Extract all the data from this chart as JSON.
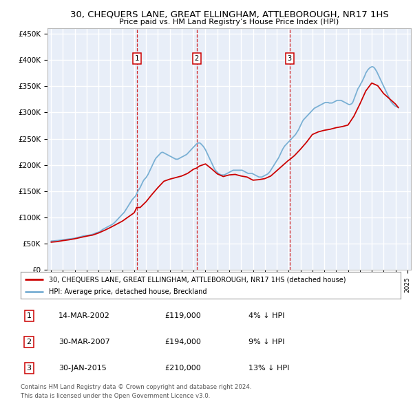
{
  "title": "30, CHEQUERS LANE, GREAT ELLINGHAM, ATTLEBOROUGH, NR17 1HS",
  "subtitle": "Price paid vs. HM Land Registry’s House Price Index (HPI)",
  "property_color": "#cc0000",
  "hpi_color": "#7ab0d4",
  "background_color": "#e8eef8",
  "grid_color": "#ffffff",
  "ylim": [
    0,
    460000
  ],
  "yticks": [
    0,
    50000,
    100000,
    150000,
    200000,
    250000,
    300000,
    350000,
    400000,
    450000
  ],
  "ytick_labels": [
    "£0",
    "£50K",
    "£100K",
    "£150K",
    "£200K",
    "£250K",
    "£300K",
    "£350K",
    "£400K",
    "£450K"
  ],
  "transactions": [
    {
      "label": "1",
      "date": "14-MAR-2002",
      "price": "119,000",
      "hpi_diff": "4% ↓ HPI",
      "x": 2002.21
    },
    {
      "label": "2",
      "date": "30-MAR-2007",
      "price": "194,000",
      "hpi_diff": "9% ↓ HPI",
      "x": 2007.25
    },
    {
      "label": "3",
      "date": "30-JAN-2015",
      "price": "210,000",
      "hpi_diff": "13% ↓ HPI",
      "x": 2015.08
    }
  ],
  "legend_property": "30, CHEQUERS LANE, GREAT ELLINGHAM, ATTLEBOROUGH, NR17 1HS (detached house)",
  "legend_hpi": "HPI: Average price, detached house, Breckland",
  "footnote1": "Contains HM Land Registry data © Crown copyright and database right 2024.",
  "footnote2": "This data is licensed under the Open Government Licence v3.0.",
  "hpi_data_x": [
    1995.0,
    1995.083,
    1995.167,
    1995.25,
    1995.333,
    1995.417,
    1995.5,
    1995.583,
    1995.667,
    1995.75,
    1995.833,
    1995.917,
    1996.0,
    1996.083,
    1996.167,
    1996.25,
    1996.333,
    1996.417,
    1996.5,
    1996.583,
    1996.667,
    1996.75,
    1996.833,
    1996.917,
    1997.0,
    1997.083,
    1997.167,
    1997.25,
    1997.333,
    1997.417,
    1997.5,
    1997.583,
    1997.667,
    1997.75,
    1997.833,
    1997.917,
    1998.0,
    1998.083,
    1998.167,
    1998.25,
    1998.333,
    1998.417,
    1998.5,
    1998.583,
    1998.667,
    1998.75,
    1998.833,
    1998.917,
    1999.0,
    1999.083,
    1999.167,
    1999.25,
    1999.333,
    1999.417,
    1999.5,
    1999.583,
    1999.667,
    1999.75,
    1999.833,
    1999.917,
    2000.0,
    2000.083,
    2000.167,
    2000.25,
    2000.333,
    2000.417,
    2000.5,
    2000.583,
    2000.667,
    2000.75,
    2000.833,
    2000.917,
    2001.0,
    2001.083,
    2001.167,
    2001.25,
    2001.333,
    2001.417,
    2001.5,
    2001.583,
    2001.667,
    2001.75,
    2001.833,
    2001.917,
    2002.0,
    2002.083,
    2002.167,
    2002.25,
    2002.333,
    2002.417,
    2002.5,
    2002.583,
    2002.667,
    2002.75,
    2002.833,
    2002.917,
    2003.0,
    2003.083,
    2003.167,
    2003.25,
    2003.333,
    2003.417,
    2003.5,
    2003.583,
    2003.667,
    2003.75,
    2003.833,
    2003.917,
    2004.0,
    2004.083,
    2004.167,
    2004.25,
    2004.333,
    2004.417,
    2004.5,
    2004.583,
    2004.667,
    2004.75,
    2004.833,
    2004.917,
    2005.0,
    2005.083,
    2005.167,
    2005.25,
    2005.333,
    2005.417,
    2005.5,
    2005.583,
    2005.667,
    2005.75,
    2005.833,
    2005.917,
    2006.0,
    2006.083,
    2006.167,
    2006.25,
    2006.333,
    2006.417,
    2006.5,
    2006.583,
    2006.667,
    2006.75,
    2006.833,
    2006.917,
    2007.0,
    2007.083,
    2007.167,
    2007.25,
    2007.333,
    2007.417,
    2007.5,
    2007.583,
    2007.667,
    2007.75,
    2007.833,
    2007.917,
    2008.0,
    2008.083,
    2008.167,
    2008.25,
    2008.333,
    2008.417,
    2008.5,
    2008.583,
    2008.667,
    2008.75,
    2008.833,
    2008.917,
    2009.0,
    2009.083,
    2009.167,
    2009.25,
    2009.333,
    2009.417,
    2009.5,
    2009.583,
    2009.667,
    2009.75,
    2009.833,
    2009.917,
    2010.0,
    2010.083,
    2010.167,
    2010.25,
    2010.333,
    2010.417,
    2010.5,
    2010.583,
    2010.667,
    2010.75,
    2010.833,
    2010.917,
    2011.0,
    2011.083,
    2011.167,
    2011.25,
    2011.333,
    2011.417,
    2011.5,
    2011.583,
    2011.667,
    2011.75,
    2011.833,
    2011.917,
    2012.0,
    2012.083,
    2012.167,
    2012.25,
    2012.333,
    2012.417,
    2012.5,
    2012.583,
    2012.667,
    2012.75,
    2012.833,
    2012.917,
    2013.0,
    2013.083,
    2013.167,
    2013.25,
    2013.333,
    2013.417,
    2013.5,
    2013.583,
    2013.667,
    2013.75,
    2013.833,
    2013.917,
    2014.0,
    2014.083,
    2014.167,
    2014.25,
    2014.333,
    2014.417,
    2014.5,
    2014.583,
    2014.667,
    2014.75,
    2014.833,
    2014.917,
    2015.0,
    2015.083,
    2015.167,
    2015.25,
    2015.333,
    2015.417,
    2015.5,
    2015.583,
    2015.667,
    2015.75,
    2015.833,
    2015.917,
    2016.0,
    2016.083,
    2016.167,
    2016.25,
    2016.333,
    2016.417,
    2016.5,
    2016.583,
    2016.667,
    2016.75,
    2016.833,
    2016.917,
    2017.0,
    2017.083,
    2017.167,
    2017.25,
    2017.333,
    2017.417,
    2017.5,
    2017.583,
    2017.667,
    2017.75,
    2017.833,
    2017.917,
    2018.0,
    2018.083,
    2018.167,
    2018.25,
    2018.333,
    2018.417,
    2018.5,
    2018.583,
    2018.667,
    2018.75,
    2018.833,
    2018.917,
    2019.0,
    2019.083,
    2019.167,
    2019.25,
    2019.333,
    2019.417,
    2019.5,
    2019.583,
    2019.667,
    2019.75,
    2019.833,
    2019.917,
    2020.0,
    2020.083,
    2020.167,
    2020.25,
    2020.333,
    2020.417,
    2020.5,
    2020.583,
    2020.667,
    2020.75,
    2020.833,
    2020.917,
    2021.0,
    2021.083,
    2021.167,
    2021.25,
    2021.333,
    2021.417,
    2021.5,
    2021.583,
    2021.667,
    2021.75,
    2021.833,
    2021.917,
    2022.0,
    2022.083,
    2022.167,
    2022.25,
    2022.333,
    2022.417,
    2022.5,
    2022.583,
    2022.667,
    2022.75,
    2022.833,
    2022.917,
    2023.0,
    2023.083,
    2023.167,
    2023.25,
    2023.333,
    2023.417,
    2023.5,
    2023.583,
    2023.667,
    2023.75,
    2023.833,
    2023.917,
    2024.0,
    2024.083,
    2024.167,
    2024.25
  ],
  "hpi_data_y": [
    55000,
    55200,
    55400,
    55600,
    55800,
    55900,
    56000,
    56200,
    56500,
    56800,
    57000,
    57200,
    57500,
    57700,
    58000,
    58300,
    58600,
    58800,
    59000,
    59300,
    59600,
    59800,
    60000,
    60300,
    60600,
    61000,
    61500,
    62000,
    62500,
    63000,
    63500,
    64000,
    64500,
    65000,
    65200,
    65400,
    65600,
    65800,
    66200,
    66600,
    67000,
    67500,
    68000,
    68700,
    69400,
    70200,
    71000,
    71500,
    72000,
    73000,
    74000,
    75500,
    77000,
    78000,
    79000,
    80000,
    81000,
    82000,
    83000,
    84000,
    85000,
    86000,
    87000,
    88500,
    90000,
    92000,
    94000,
    96000,
    98000,
    100000,
    102000,
    104000,
    106000,
    108000,
    110000,
    113000,
    116000,
    119000,
    122000,
    125000,
    128000,
    131000,
    134000,
    136000,
    138000,
    140000,
    143000,
    147000,
    151000,
    154000,
    157000,
    161000,
    165000,
    169000,
    172000,
    174000,
    176000,
    179000,
    182000,
    186000,
    190000,
    194000,
    198000,
    202000,
    206000,
    210000,
    213000,
    215000,
    217000,
    219000,
    221000,
    223000,
    224000,
    224000,
    223000,
    222000,
    221000,
    220000,
    219000,
    218000,
    217000,
    216000,
    215000,
    214000,
    213000,
    212000,
    211000,
    211000,
    211000,
    212000,
    213000,
    214000,
    215000,
    216000,
    217000,
    218000,
    219000,
    220000,
    222000,
    224000,
    226000,
    228000,
    230000,
    232000,
    234000,
    236000,
    238000,
    240000,
    241000,
    242000,
    242000,
    241000,
    239000,
    237000,
    235000,
    232000,
    229000,
    225000,
    221000,
    217000,
    213000,
    209000,
    205000,
    201000,
    197000,
    193000,
    190000,
    188000,
    186000,
    184000,
    183000,
    182000,
    181000,
    181000,
    181000,
    181000,
    182000,
    183000,
    184000,
    185000,
    186000,
    187000,
    188000,
    189000,
    190000,
    190000,
    190000,
    190000,
    190000,
    190000,
    190000,
    190000,
    190000,
    190000,
    189000,
    188000,
    187000,
    186000,
    185000,
    184000,
    184000,
    184000,
    184000,
    184000,
    183000,
    182000,
    181000,
    180000,
    179000,
    178000,
    177000,
    177000,
    177000,
    177000,
    178000,
    179000,
    180000,
    181000,
    182000,
    183000,
    185000,
    187000,
    190000,
    193000,
    196000,
    199000,
    202000,
    205000,
    208000,
    211000,
    214000,
    218000,
    222000,
    226000,
    230000,
    233000,
    236000,
    238000,
    240000,
    242000,
    244000,
    246000,
    248000,
    250000,
    252000,
    254000,
    256000,
    258000,
    261000,
    264000,
    267000,
    271000,
    275000,
    279000,
    283000,
    286000,
    288000,
    290000,
    292000,
    294000,
    296000,
    298000,
    300000,
    302000,
    304000,
    306000,
    308000,
    309000,
    310000,
    311000,
    312000,
    313000,
    314000,
    315000,
    316000,
    317000,
    318000,
    319000,
    319000,
    319000,
    319000,
    318000,
    318000,
    318000,
    318000,
    319000,
    320000,
    321000,
    322000,
    323000,
    323000,
    323000,
    323000,
    323000,
    322000,
    321000,
    320000,
    319000,
    318000,
    317000,
    316000,
    315000,
    315000,
    316000,
    317000,
    320000,
    325000,
    330000,
    335000,
    340000,
    345000,
    348000,
    351000,
    355000,
    358000,
    362000,
    366000,
    370000,
    375000,
    378000,
    381000,
    383000,
    385000,
    386000,
    387000,
    387000,
    386000,
    384000,
    381000,
    378000,
    374000,
    370000,
    366000,
    362000,
    358000,
    354000,
    350000,
    346000,
    342000,
    338000,
    334000,
    330000,
    326000,
    322000,
    319000,
    317000,
    315000,
    313000,
    312000,
    311000,
    310000,
    309000
  ],
  "prop_data_x": [
    1995.0,
    1995.5,
    1996.0,
    1996.5,
    1997.0,
    1997.5,
    1998.0,
    1998.5,
    1999.0,
    1999.5,
    2000.0,
    2000.5,
    2001.0,
    2001.5,
    2002.0,
    2002.21,
    2002.5,
    2003.0,
    2003.5,
    2004.0,
    2004.5,
    2005.0,
    2005.5,
    2006.0,
    2006.5,
    2007.0,
    2007.25,
    2007.5,
    2008.0,
    2008.5,
    2009.0,
    2009.5,
    2010.0,
    2010.5,
    2011.0,
    2011.5,
    2012.0,
    2012.5,
    2013.0,
    2013.5,
    2014.0,
    2014.5,
    2015.0,
    2015.08,
    2015.5,
    2016.0,
    2016.5,
    2017.0,
    2017.5,
    2018.0,
    2018.5,
    2019.0,
    2019.5,
    2020.0,
    2020.5,
    2021.0,
    2021.5,
    2022.0,
    2022.5,
    2023.0,
    2023.5,
    2024.0,
    2024.25
  ],
  "prop_data_y": [
    53000,
    54000,
    56000,
    57500,
    59500,
    62000,
    64500,
    66500,
    70500,
    75500,
    81000,
    87000,
    93000,
    101000,
    109000,
    119000,
    119000,
    130000,
    144000,
    157000,
    169000,
    173000,
    176000,
    179000,
    184000,
    192000,
    194000,
    198000,
    202000,
    193000,
    183000,
    178000,
    181000,
    182000,
    179000,
    177000,
    171000,
    172000,
    174000,
    179000,
    189000,
    199000,
    209000,
    210000,
    218000,
    230000,
    243000,
    258000,
    263000,
    266000,
    268000,
    271000,
    273000,
    276000,
    293000,
    316000,
    341000,
    356000,
    351000,
    336000,
    326000,
    316000,
    309000
  ]
}
